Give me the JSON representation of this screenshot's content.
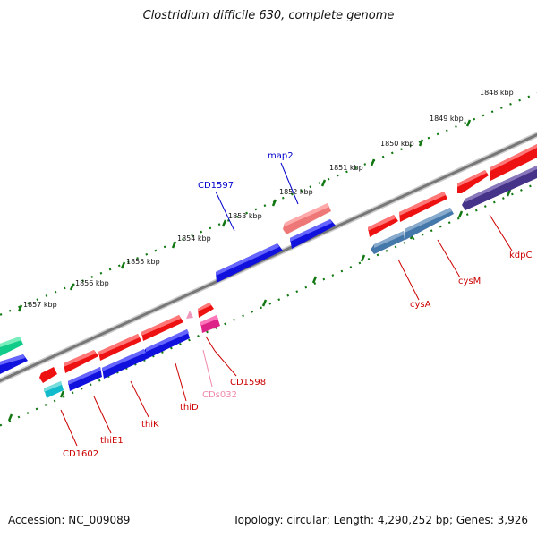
{
  "title": "Clostridium difficile 630, complete genome",
  "footer": {
    "accession": "Accession: NC_009089",
    "summary": "Topology: circular; Length: 4,290,252 bp; Genes: 3,926"
  },
  "ruler": {
    "labels": [
      "1848 kbp",
      "1849 kbp",
      "1850 kbp",
      "1851 kbp",
      "1852 kbp",
      "1853 kbp",
      "1854 kbp",
      "1855 kbp",
      "1856 kbp",
      "1857 kbp"
    ]
  },
  "gene_labels": {
    "map2": "map2",
    "CD1597": "CD1597",
    "kdpC": "kdpC",
    "cysM": "cysM",
    "cysA": "cysA",
    "CD1598": "CD1598",
    "CDs032": "CDs032",
    "thiD": "thiD",
    "thiK": "thiK",
    "thiE1": "thiE1",
    "CD1602": "CD1602"
  },
  "colors": {
    "red_gene": "#ee1111",
    "blue_gene": "#1111dd",
    "steel_gene": "#4477aa",
    "indigo_gene": "#443388",
    "pink_gene": "#dd2288",
    "light_pink": "#ee99bb",
    "salmon_gene": "#ee7777",
    "cyan_gene": "#11bbcc",
    "green_gene": "#11cc88",
    "tick_green": "#117711",
    "backbone": "#777777",
    "label_red": "#cc0000",
    "label_blue": "#0000cc",
    "label_pink": "#ee88aa"
  }
}
